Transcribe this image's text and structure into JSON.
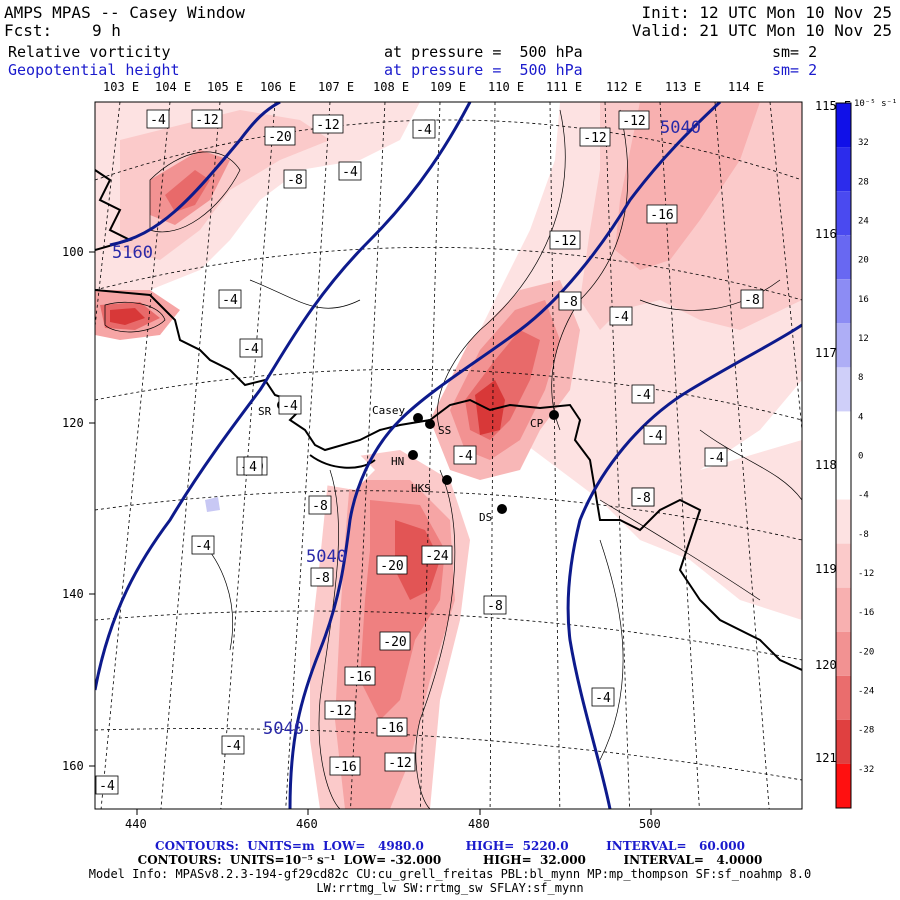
{
  "header": {
    "title": "AMPS MPAS -- Casey Window",
    "fcst_label": "Fcst:",
    "fcst_value": "9 h",
    "init": "Init: 12 UTC Mon 10 Nov 25",
    "valid": "Valid: 21 UTC Mon 10 Nov 25",
    "field1_name": "Relative vorticity",
    "field1_level": "at pressure =  500 hPa",
    "field1_sm": "sm= 2",
    "field2_name": "Geopotential height",
    "field2_level": "at pressure =  500 hPa",
    "field2_sm": "sm= 2"
  },
  "axes": {
    "top_lon_labels": [
      "103 E",
      "104 E",
      "105 E",
      "106 E",
      "107 E",
      "108 E",
      "109 E",
      "110 E",
      "111 E",
      "112 E",
      "113 E",
      "114 E"
    ],
    "right_lon_labels": [
      "115 E",
      "116 E",
      "117 E",
      "118 E",
      "119 E",
      "120 E",
      "121 E"
    ],
    "x_ticks": [
      "440",
      "460",
      "480",
      "500"
    ],
    "y_ticks": [
      "100",
      "120",
      "140",
      "160"
    ]
  },
  "colorbar": {
    "unit": "10⁻⁵ s⁻¹",
    "labels": [
      "32",
      "28",
      "24",
      "20",
      "16",
      "12",
      "8",
      "4",
      "0",
      "-4",
      "-8",
      "-12",
      "-16",
      "-20",
      "-24",
      "-28",
      "-32"
    ],
    "colors": {
      "pos_strong": "#1010e8",
      "neg_strong": "#ff1010",
      "height_contour": "#0d1a8c"
    }
  },
  "stations": [
    "Casey",
    "SS",
    "HN",
    "HKS",
    "DS",
    "CP",
    "SR"
  ],
  "contour_labels": {
    "vort": [
      "-4",
      "-12",
      "-20",
      "-12",
      "-4",
      "-8",
      "-4",
      "-12",
      "-12",
      "-16",
      "-12",
      "-8",
      "-4",
      "-8",
      "-4",
      "-4",
      "-4",
      "-4",
      "-4",
      "-20",
      "-4",
      "-24",
      "-20",
      "-8",
      "-8",
      "-8",
      "-20",
      "-16",
      "-12",
      "-16",
      "-12",
      "-16",
      "-4",
      "-4",
      "-4",
      "-4",
      "-4",
      "-8",
      "4",
      "-4"
    ],
    "height": [
      "5040",
      "5160",
      "5040",
      "5040"
    ]
  },
  "footer": {
    "line1": "CONTOURS:  UNITS=m  LOW=   4980.0          HIGH=  5220.0         INTERVAL=   60.000",
    "line2": "CONTOURS:  UNITS=10⁻⁵ s⁻¹  LOW= -32.000          HIGH=  32.000         INTERVAL=   4.0000",
    "line3": "Model Info: MPASv8.2.3-194-gf29cd82c CU:cu_grell_freitas PBL:bl_mynn MP:mp_thompson SF:sf_noahmp 8.0",
    "line4": "LW:rrtmg_lw SW:rrtmg_sw SFLAY:sf_mynn"
  }
}
